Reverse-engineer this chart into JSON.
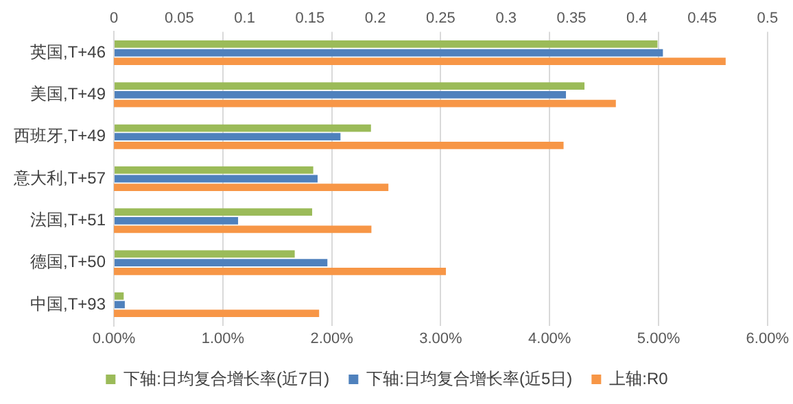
{
  "chart_data": {
    "type": "bar",
    "orientation": "horizontal",
    "categories": [
      "英国,T+46",
      "美国,T+49",
      "西班牙,T+49",
      "意大利,T+57",
      "法国,T+51",
      "德国,T+50",
      "中国,T+93"
    ],
    "series": [
      {
        "name": "下轴:日均复合增长率(近7日)",
        "color": "#9bbb59",
        "values": [
          4.99,
          4.32,
          2.36,
          1.83,
          1.82,
          1.66,
          0.09
        ]
      },
      {
        "name": "下轴:日均复合增长率(近5日)",
        "color": "#4f81bd",
        "values": [
          5.04,
          4.15,
          2.08,
          1.87,
          1.14,
          1.96,
          0.1
        ]
      },
      {
        "name": "上轴:R0",
        "color": "#f79646",
        "axis": "x2",
        "values": [
          0.468,
          0.384,
          0.344,
          0.21,
          0.197,
          0.254,
          0.157
        ]
      }
    ],
    "xlim": [
      0,
      6
    ],
    "xticks": [
      {
        "value": 0,
        "label": "0.00%"
      },
      {
        "value": 1,
        "label": "1.00%"
      },
      {
        "value": 2,
        "label": "2.00%"
      },
      {
        "value": 3,
        "label": "3.00%"
      },
      {
        "value": 4,
        "label": "4.00%"
      },
      {
        "value": 5,
        "label": "5.00%"
      },
      {
        "value": 6,
        "label": "6.00%"
      }
    ],
    "x2lim": [
      0,
      0.5
    ],
    "x2ticks": [
      0,
      0.05,
      0.1,
      0.15,
      0.2,
      0.25,
      0.3,
      0.35,
      0.4,
      0.45,
      0.5
    ],
    "grid": "x",
    "legend": "bottom"
  }
}
